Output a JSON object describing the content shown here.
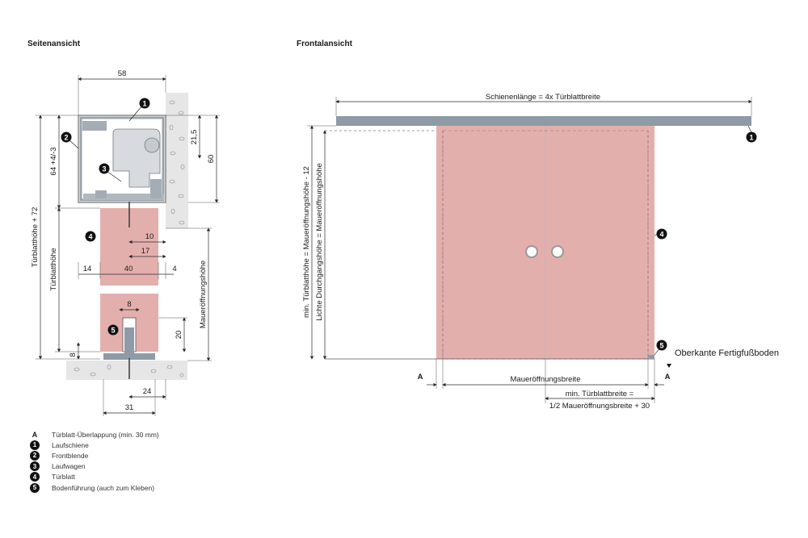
{
  "titles": {
    "side": "Seitenansicht",
    "front": "Frontalansicht"
  },
  "side_dims": {
    "width_58": "58",
    "h_21_5": "21,5",
    "h_60": "60",
    "h_64": "64 +4/-3",
    "turblatthoehe_72": "Türblatthöhe + 72",
    "turblatthoehe": "Türblatthöhe",
    "d_10": "10",
    "d_17": "17",
    "d_14": "14",
    "d_40": "40",
    "d_4": "4",
    "d_8_top": "8",
    "d_20": "20",
    "d_8_left": "8",
    "d_24": "24",
    "d_31": "31",
    "maueroeffnungshoehe": "Maueröffnungshöhe"
  },
  "front_dims": {
    "schienenlaenge": "Schienenlänge = 4x Türblattbreite",
    "min_turblatthoehe": "min. Türblatthöhe = Maueröffnungshöhe - 12",
    "lichte": "Lichte Durchgangshöhe = Maueröffnungshöhe",
    "maueroeffnungsbreite": "Maueröffnungsbreite",
    "a_left": "A",
    "a_right": "A",
    "min_turblattbreite_1": "min. Türblattbreite =",
    "min_turblattbreite_2": "1/2 Maueröffnungsbreite + 30",
    "oberkante": "Oberkante Fertigfußboden"
  },
  "badges": {
    "b1": "1",
    "b2": "2",
    "b3": "3",
    "b4": "4",
    "b5": "5"
  },
  "legend": [
    {
      "key": "A",
      "text": "Türblatt-Überlappung (min. 30 mm)"
    },
    {
      "key": "1",
      "text": "Laufschiene"
    },
    {
      "key": "2",
      "text": "Frontblende"
    },
    {
      "key": "3",
      "text": "Laufwagen"
    },
    {
      "key": "4",
      "text": "Türblatt"
    },
    {
      "key": "5",
      "text": "Bodenführung (auch zum Kleben)"
    }
  ],
  "colors": {
    "door": "#e3afad",
    "rail": "#8e9aa6",
    "wall": "#e4e4e4",
    "profile": "#b8c0c8"
  }
}
